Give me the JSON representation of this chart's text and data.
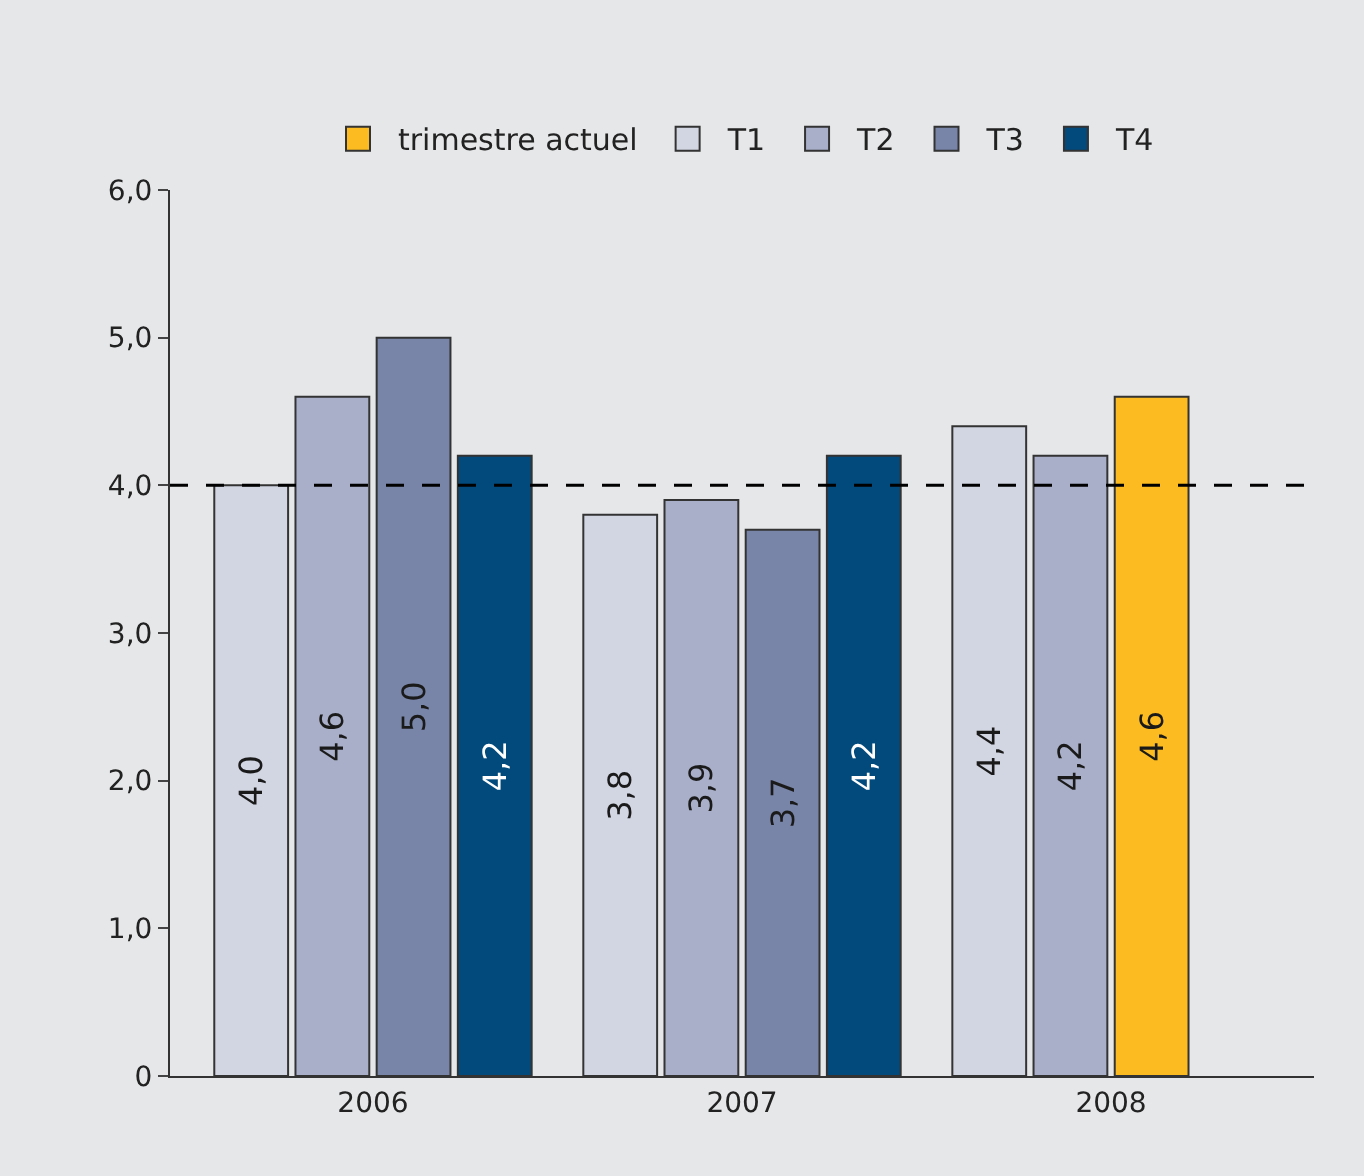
{
  "chart_data": {
    "type": "bar",
    "categories": [
      "2006",
      "2007",
      "2008"
    ],
    "series": [
      {
        "name": "trimestre actuel",
        "color": "#fbbb21",
        "values": [
          null,
          null,
          4.6
        ],
        "value_labels": [
          null,
          null,
          "4,6"
        ]
      },
      {
        "name": "T1",
        "color": "#d2d6e2",
        "values": [
          4.0,
          3.8,
          4.4
        ],
        "value_labels": [
          "4,0",
          "3,8",
          "4,4"
        ]
      },
      {
        "name": "T2",
        "color": "#a9afc9",
        "values": [
          4.6,
          3.9,
          4.2
        ],
        "value_labels": [
          "4,6",
          "3,9",
          "4,2"
        ]
      },
      {
        "name": "T3",
        "color": "#7985a8",
        "values": [
          5.0,
          3.7,
          null
        ],
        "value_labels": [
          "5,0",
          "3,7",
          null
        ]
      },
      {
        "name": "T4",
        "color": "#024a7c",
        "values": [
          4.2,
          4.2,
          null
        ],
        "value_labels": [
          "4,2",
          "4,2",
          null
        ]
      }
    ],
    "ylim": [
      0,
      6
    ],
    "yticks": [
      {
        "value": 0,
        "label": "0"
      },
      {
        "value": 1,
        "label": "1,0"
      },
      {
        "value": 2,
        "label": "2,0"
      },
      {
        "value": 3,
        "label": "3,0"
      },
      {
        "value": 4,
        "label": "4,0"
      },
      {
        "value": 5,
        "label": "5,0"
      },
      {
        "value": 6,
        "label": "6,0"
      }
    ],
    "ref_lines": [
      {
        "axis": "y",
        "value": 4.0,
        "label": null,
        "color": "#000000",
        "line_style": "dashed"
      }
    ],
    "grid": false,
    "legend": "top"
  }
}
